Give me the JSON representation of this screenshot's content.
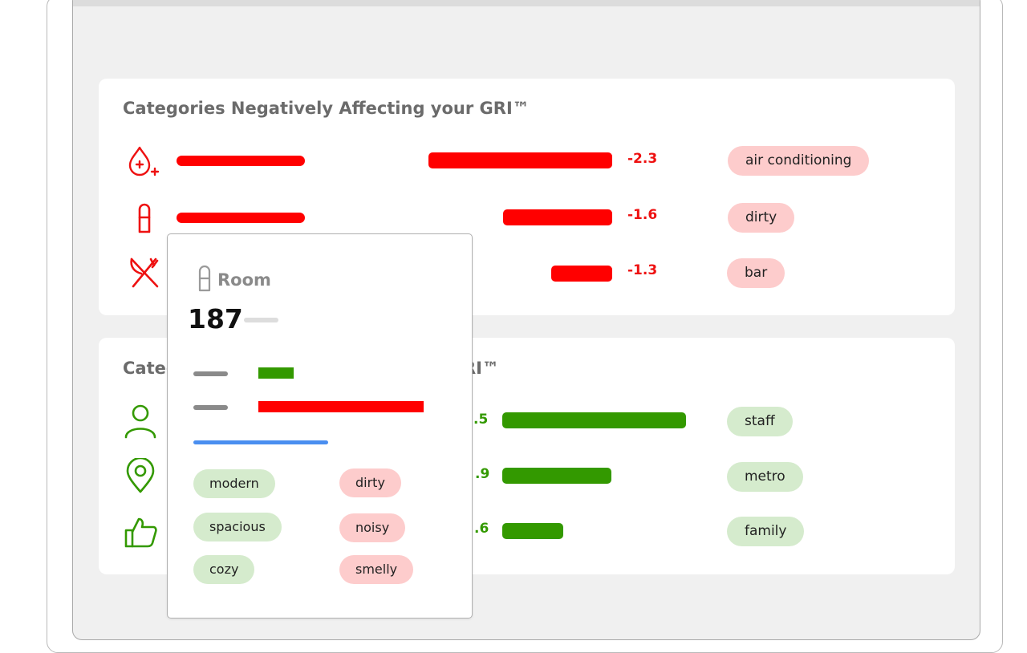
{
  "negative_section": {
    "title": "Categories Negatively Affecting your GRI™",
    "rows": [
      {
        "icon": "water-drop-sparkle-icon",
        "value": "-2.3",
        "tag": "air conditioning"
      },
      {
        "icon": "door-handle-icon",
        "value": "-1.6",
        "tag": "dirty"
      },
      {
        "icon": "fork-knife-icon",
        "value": "-1.3",
        "tag": "bar"
      }
    ]
  },
  "positive_section": {
    "title_visible_end": "RI™",
    "rows": [
      {
        "icon": "person-icon",
        "value": ".5",
        "tag": "staff"
      },
      {
        "icon": "location-pin-icon",
        "value": ".9",
        "tag": "metro"
      },
      {
        "icon": "thumbs-up-icon",
        "value": ".6",
        "tag": "family"
      }
    ]
  },
  "tooltip": {
    "icon": "door-handle-icon",
    "title": "Room",
    "count": "187",
    "positive_tags": [
      "modern",
      "spacious",
      "cozy"
    ],
    "negative_tags": [
      "dirty",
      "noisy",
      "smelly"
    ]
  },
  "colors": {
    "negative": "#ff0000",
    "positive": "#339900",
    "negative_tag_bg": "#fdcccc",
    "positive_tag_bg": "#d5ebcd",
    "accent_blue": "#4a8ef0"
  }
}
